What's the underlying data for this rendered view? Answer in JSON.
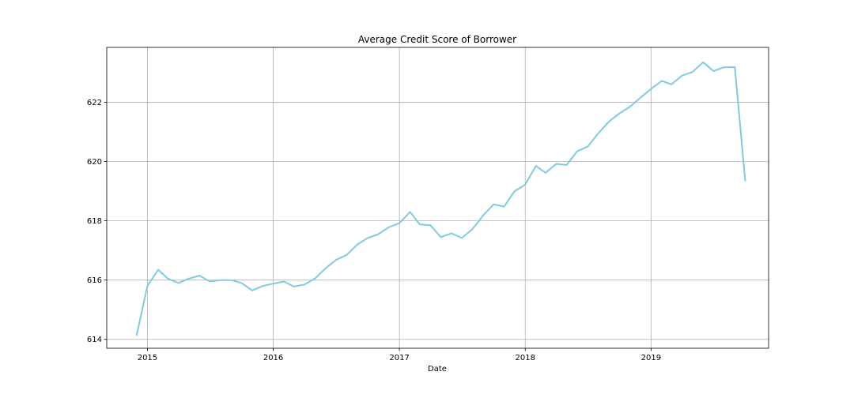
{
  "chart_data": {
    "type": "line",
    "title": "Average Credit Score of Borrower",
    "xlabel": "Date",
    "ylabel": "",
    "x_ticks": [
      "2015",
      "2016",
      "2017",
      "2018",
      "2019"
    ],
    "y_ticks": [
      614,
      616,
      618,
      620,
      622
    ],
    "xlim": [
      "2014-09-05",
      "2019-12-08"
    ],
    "ylim": [
      613.7,
      623.85
    ],
    "grid": true,
    "line_color": "#7ecbe3",
    "series": [
      {
        "x": [
          "2014-12-01",
          "2015-01-01",
          "2015-02-01",
          "2015-03-01",
          "2015-04-01",
          "2015-05-01",
          "2015-06-01",
          "2015-07-01",
          "2015-08-01",
          "2015-09-01",
          "2015-10-01",
          "2015-11-01",
          "2015-12-01",
          "2016-01-01",
          "2016-02-01",
          "2016-03-01",
          "2016-04-01",
          "2016-05-01",
          "2016-06-01",
          "2016-07-01",
          "2016-08-01",
          "2016-09-01",
          "2016-10-01",
          "2016-11-01",
          "2016-12-01",
          "2017-01-01",
          "2017-02-01",
          "2017-03-01",
          "2017-04-01",
          "2017-05-01",
          "2017-06-01",
          "2017-07-01",
          "2017-08-01",
          "2017-09-01",
          "2017-10-01",
          "2017-11-01",
          "2017-12-01",
          "2018-01-01",
          "2018-02-01",
          "2018-03-01",
          "2018-04-01",
          "2018-05-01",
          "2018-06-01",
          "2018-07-01",
          "2018-08-01",
          "2018-09-01",
          "2018-10-01",
          "2018-11-01",
          "2018-12-01",
          "2019-01-01",
          "2019-02-01",
          "2019-03-01",
          "2019-04-01",
          "2019-05-01",
          "2019-06-01",
          "2019-07-01",
          "2019-08-01",
          "2019-09-01",
          "2019-10-01"
        ],
        "y": [
          614.15,
          615.8,
          616.35,
          616.05,
          615.9,
          616.05,
          616.15,
          615.95,
          616.0,
          616.0,
          615.9,
          615.65,
          615.8,
          615.88,
          615.95,
          615.78,
          615.85,
          616.05,
          616.4,
          616.68,
          616.85,
          617.2,
          617.42,
          617.55,
          617.78,
          617.92,
          618.3,
          617.88,
          617.85,
          617.45,
          617.58,
          617.42,
          617.72,
          618.18,
          618.55,
          618.48,
          619.0,
          619.22,
          619.85,
          619.62,
          619.92,
          619.88,
          620.35,
          620.5,
          620.95,
          621.35,
          621.62,
          621.85,
          622.15,
          622.45,
          622.72,
          622.6,
          622.9,
          623.02,
          623.35,
          623.05,
          623.18,
          623.18,
          619.35
        ]
      }
    ]
  }
}
